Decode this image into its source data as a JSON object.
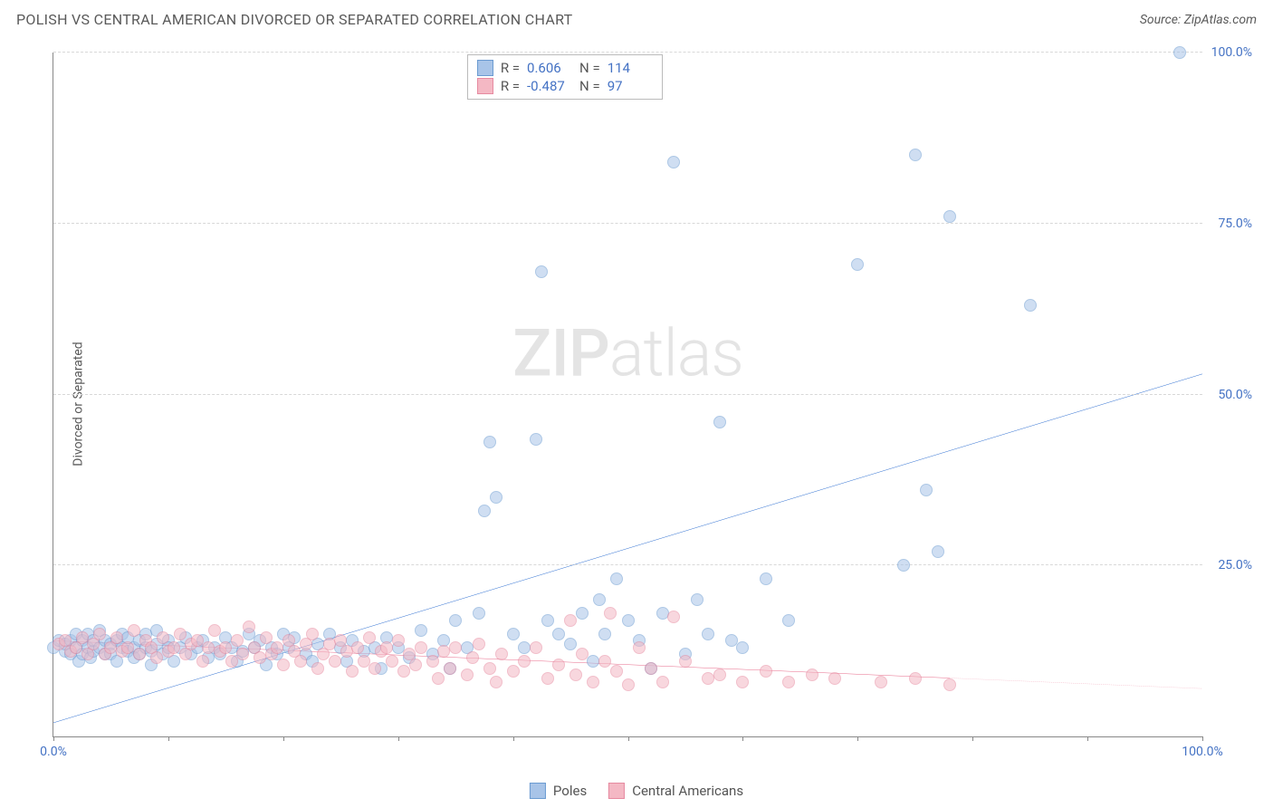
{
  "header": {
    "title": "POLISH VS CENTRAL AMERICAN DIVORCED OR SEPARATED CORRELATION CHART",
    "source": "Source: ZipAtlas.com"
  },
  "watermark": {
    "bold": "ZIP",
    "light": "atlas"
  },
  "chart": {
    "type": "scatter",
    "y_axis_label": "Divorced or Separated",
    "background_color": "#ffffff",
    "grid_color": "#d8d8d8",
    "axis_color": "#888888",
    "tick_label_color": "#4472c4",
    "xlim": [
      0,
      100
    ],
    "ylim": [
      0,
      100
    ],
    "x_ticks": [
      0,
      10,
      20,
      30,
      40,
      50,
      60,
      70,
      80,
      90,
      100
    ],
    "x_tick_labels": {
      "0": "0.0%",
      "100": "100.0%"
    },
    "y_gridlines": [
      25,
      50,
      75,
      100
    ],
    "y_tick_labels": {
      "25": "25.0%",
      "50": "50.0%",
      "75": "75.0%",
      "100": "100.0%"
    },
    "marker_radius": 7,
    "marker_opacity": 0.55,
    "series": [
      {
        "name": "Poles",
        "fill_color": "#a8c4e8",
        "stroke_color": "#6b9bd1",
        "trend": {
          "color": "#2e6fd1",
          "width": 2,
          "y_at_x0": 2,
          "y_at_x100": 53,
          "dashed_from_x": null
        },
        "stats": {
          "R": "0.606",
          "N": "114"
        },
        "points": [
          [
            0,
            13
          ],
          [
            0.5,
            14
          ],
          [
            1,
            12.5
          ],
          [
            1,
            13.5
          ],
          [
            1.5,
            12
          ],
          [
            1.5,
            14
          ],
          [
            2,
            13
          ],
          [
            2,
            15
          ],
          [
            2.2,
            11
          ],
          [
            2.5,
            12
          ],
          [
            2.5,
            14
          ],
          [
            3,
            13
          ],
          [
            3,
            15
          ],
          [
            3.2,
            11.5
          ],
          [
            3.5,
            12.5
          ],
          [
            3.5,
            14
          ],
          [
            4,
            13
          ],
          [
            4,
            15.5
          ],
          [
            4.5,
            12
          ],
          [
            4.5,
            14
          ],
          [
            5,
            13.5
          ],
          [
            5,
            12
          ],
          [
            5.5,
            14
          ],
          [
            5.5,
            11
          ],
          [
            6,
            13
          ],
          [
            6,
            15
          ],
          [
            6.5,
            12.5
          ],
          [
            6.5,
            14.5
          ],
          [
            7,
            13
          ],
          [
            7,
            11.5
          ],
          [
            7.5,
            12
          ],
          [
            7.5,
            14
          ],
          [
            8,
            13
          ],
          [
            8,
            15
          ],
          [
            8.5,
            12.5
          ],
          [
            8.5,
            10.5
          ],
          [
            9,
            13.5
          ],
          [
            9,
            15.5
          ],
          [
            9.5,
            12
          ],
          [
            10,
            14
          ],
          [
            10,
            13
          ],
          [
            10.5,
            11
          ],
          [
            11,
            13
          ],
          [
            11.5,
            14.5
          ],
          [
            12,
            12
          ],
          [
            12.5,
            13
          ],
          [
            13,
            14
          ],
          [
            13.5,
            11.5
          ],
          [
            14,
            13
          ],
          [
            14.5,
            12
          ],
          [
            15,
            14.5
          ],
          [
            15.5,
            13
          ],
          [
            16,
            11
          ],
          [
            16.5,
            12.5
          ],
          [
            17,
            15
          ],
          [
            17.5,
            13
          ],
          [
            18,
            14
          ],
          [
            18.5,
            10.5
          ],
          [
            19,
            13
          ],
          [
            19.5,
            12
          ],
          [
            20,
            15
          ],
          [
            20.5,
            13
          ],
          [
            21,
            14.5
          ],
          [
            22,
            12
          ],
          [
            22.5,
            11
          ],
          [
            23,
            13.5
          ],
          [
            24,
            15
          ],
          [
            25,
            13
          ],
          [
            25.5,
            11
          ],
          [
            26,
            14
          ],
          [
            27,
            12.5
          ],
          [
            28,
            13
          ],
          [
            28.5,
            10
          ],
          [
            29,
            14.5
          ],
          [
            30,
            13
          ],
          [
            31,
            11.5
          ],
          [
            32,
            15.5
          ],
          [
            33,
            12
          ],
          [
            34,
            14
          ],
          [
            34.5,
            10
          ],
          [
            35,
            17
          ],
          [
            36,
            13
          ],
          [
            37,
            18
          ],
          [
            37.5,
            33
          ],
          [
            38,
            43
          ],
          [
            38.5,
            35
          ],
          [
            40,
            15
          ],
          [
            41,
            13
          ],
          [
            42,
            43.5
          ],
          [
            42.5,
            68
          ],
          [
            43,
            17
          ],
          [
            44,
            15
          ],
          [
            45,
            13.5
          ],
          [
            46,
            18
          ],
          [
            47,
            11
          ],
          [
            47.5,
            20
          ],
          [
            48,
            15
          ],
          [
            49,
            23
          ],
          [
            50,
            17
          ],
          [
            51,
            14
          ],
          [
            52,
            10
          ],
          [
            53,
            18
          ],
          [
            54,
            84
          ],
          [
            55,
            12
          ],
          [
            56,
            20
          ],
          [
            57,
            15
          ],
          [
            58,
            46
          ],
          [
            59,
            14
          ],
          [
            60,
            13
          ],
          [
            62,
            23
          ],
          [
            64,
            17
          ],
          [
            70,
            69
          ],
          [
            74,
            25
          ],
          [
            75,
            85
          ],
          [
            76,
            36
          ],
          [
            77,
            27
          ],
          [
            78,
            76
          ],
          [
            85,
            63
          ],
          [
            98,
            100
          ]
        ]
      },
      {
        "name": "Central Americans",
        "fill_color": "#f4b8c4",
        "stroke_color": "#e68aa0",
        "trend": {
          "color": "#e86a8a",
          "width": 2,
          "y_at_x0": 14,
          "y_at_x100": 7,
          "dashed_from_x": 78
        },
        "stats": {
          "R": "-0.487",
          "N": "97"
        },
        "points": [
          [
            0.5,
            13.5
          ],
          [
            1,
            14
          ],
          [
            1.5,
            12.5
          ],
          [
            2,
            13
          ],
          [
            2.5,
            14.5
          ],
          [
            3,
            12
          ],
          [
            3.5,
            13.5
          ],
          [
            4,
            15
          ],
          [
            4.5,
            12
          ],
          [
            5,
            13
          ],
          [
            5.5,
            14.5
          ],
          [
            6,
            12.5
          ],
          [
            6.5,
            13
          ],
          [
            7,
            15.5
          ],
          [
            7.5,
            12
          ],
          [
            8,
            14
          ],
          [
            8.5,
            13
          ],
          [
            9,
            11.5
          ],
          [
            9.5,
            14.5
          ],
          [
            10,
            12.5
          ],
          [
            10.5,
            13
          ],
          [
            11,
            15
          ],
          [
            11.5,
            12
          ],
          [
            12,
            13.5
          ],
          [
            12.5,
            14
          ],
          [
            13,
            11
          ],
          [
            13.5,
            13
          ],
          [
            14,
            15.5
          ],
          [
            14.5,
            12.5
          ],
          [
            15,
            13
          ],
          [
            15.5,
            11
          ],
          [
            16,
            14
          ],
          [
            16.5,
            12
          ],
          [
            17,
            16
          ],
          [
            17.5,
            13
          ],
          [
            18,
            11.5
          ],
          [
            18.5,
            14.5
          ],
          [
            19,
            12
          ],
          [
            19.5,
            13
          ],
          [
            20,
            10.5
          ],
          [
            20.5,
            14
          ],
          [
            21,
            12.5
          ],
          [
            21.5,
            11
          ],
          [
            22,
            13.5
          ],
          [
            22.5,
            15
          ],
          [
            23,
            10
          ],
          [
            23.5,
            12
          ],
          [
            24,
            13.5
          ],
          [
            24.5,
            11
          ],
          [
            25,
            14
          ],
          [
            25.5,
            12.5
          ],
          [
            26,
            9.5
          ],
          [
            26.5,
            13
          ],
          [
            27,
            11
          ],
          [
            27.5,
            14.5
          ],
          [
            28,
            10
          ],
          [
            28.5,
            12.5
          ],
          [
            29,
            13
          ],
          [
            29.5,
            11
          ],
          [
            30,
            14
          ],
          [
            30.5,
            9.5
          ],
          [
            31,
            12
          ],
          [
            31.5,
            10.5
          ],
          [
            32,
            13
          ],
          [
            33,
            11
          ],
          [
            33.5,
            8.5
          ],
          [
            34,
            12.5
          ],
          [
            34.5,
            10
          ],
          [
            35,
            13
          ],
          [
            36,
            9
          ],
          [
            36.5,
            11.5
          ],
          [
            37,
            13.5
          ],
          [
            38,
            10
          ],
          [
            38.5,
            8
          ],
          [
            39,
            12
          ],
          [
            40,
            9.5
          ],
          [
            41,
            11
          ],
          [
            42,
            13
          ],
          [
            43,
            8.5
          ],
          [
            44,
            10.5
          ],
          [
            45,
            17
          ],
          [
            45.5,
            9
          ],
          [
            46,
            12
          ],
          [
            47,
            8
          ],
          [
            48,
            11
          ],
          [
            48.5,
            18
          ],
          [
            49,
            9.5
          ],
          [
            50,
            7.5
          ],
          [
            51,
            13
          ],
          [
            52,
            10
          ],
          [
            53,
            8
          ],
          [
            54,
            17.5
          ],
          [
            55,
            11
          ],
          [
            57,
            8.5
          ],
          [
            58,
            9
          ],
          [
            60,
            8
          ],
          [
            62,
            9.5
          ],
          [
            64,
            8
          ],
          [
            66,
            9
          ],
          [
            68,
            8.5
          ],
          [
            72,
            8
          ],
          [
            75,
            8.5
          ],
          [
            78,
            7.5
          ]
        ]
      }
    ]
  },
  "bottom_legend": {
    "items": [
      {
        "label": "Poles",
        "fill": "#a8c4e8",
        "stroke": "#6b9bd1"
      },
      {
        "label": "Central Americans",
        "fill": "#f4b8c4",
        "stroke": "#e68aa0"
      }
    ]
  }
}
